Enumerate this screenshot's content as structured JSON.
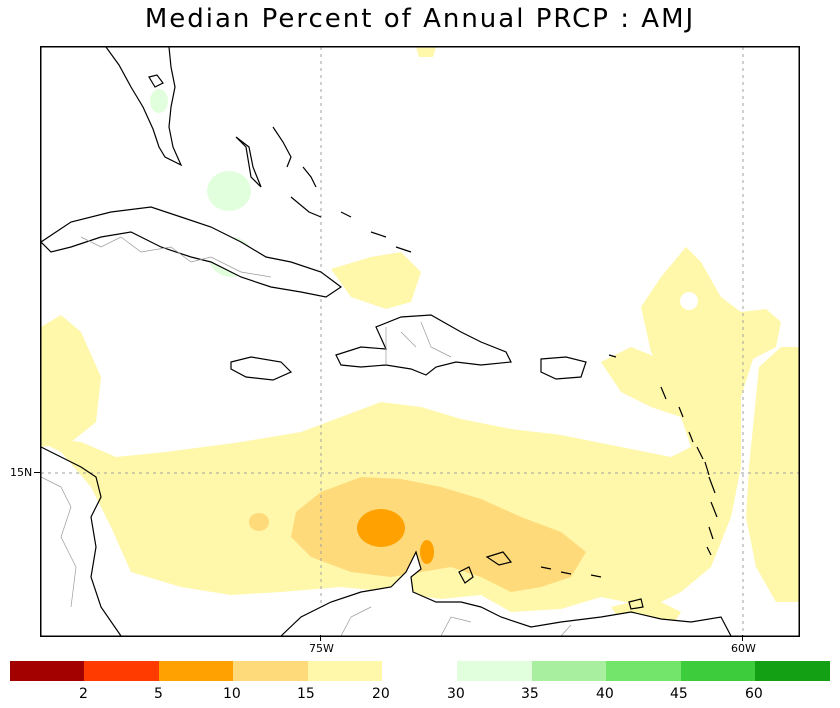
{
  "title": "Median Percent of Annual PRCP   :   AMJ",
  "axes": {
    "lon_labels": [
      "75W",
      "60W"
    ],
    "lat_labels": [
      "15N"
    ]
  },
  "legend": {
    "dry_colors": [
      "#a30000",
      "#ff3b00",
      "#ffa100",
      "#ffda7a",
      "#fff7aa"
    ],
    "dry_labels": [
      "2",
      "5",
      "10",
      "15",
      "20"
    ],
    "wet_colors": [
      "#e2ffdd",
      "#a8f0a0",
      "#72e56a",
      "#3ccc3c",
      "#14a014"
    ],
    "wet_labels": [
      "30",
      "35",
      "40",
      "45",
      "60"
    ]
  }
}
